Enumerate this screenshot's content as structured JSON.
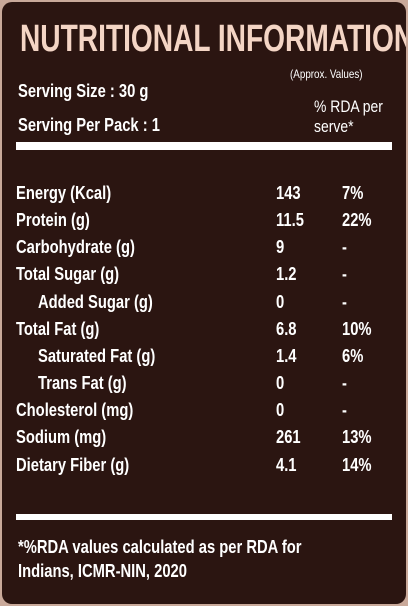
{
  "header": {
    "title": "NUTRITIONAL INFORMATION",
    "note": "(Approx. Values)",
    "serving_size": "Serving Size : 30 g",
    "serving_per_pack": "Serving Per Pack : 1",
    "rda_header": [
      "% RDA per",
      "serve*"
    ]
  },
  "table": {
    "rows": [
      [
        "Energy (Kcal)",
        "143",
        "7%"
      ],
      [
        "Protein (g)",
        "11.5",
        "22%"
      ],
      [
        "Carbohydrate (g)",
        "9",
        "-"
      ],
      [
        "Total Sugar (g)",
        "1.2",
        "-"
      ],
      [
        "Added Sugar (g)",
        "0",
        "-"
      ],
      [
        "Total Fat (g)",
        "6.8",
        "10%"
      ],
      [
        "Saturated Fat (g)",
        "1.4",
        "6%"
      ],
      [
        "Trans Fat (g)",
        "0",
        "-"
      ],
      [
        "Cholesterol (mg)",
        "0",
        "-"
      ],
      [
        "Sodium (mg)",
        "261",
        "13%"
      ],
      [
        "Dietary Fiber (g)",
        "4.1",
        "14%"
      ]
    ],
    "indented": [
      false,
      false,
      false,
      false,
      true,
      false,
      true,
      true,
      false,
      false,
      false
    ]
  },
  "footer": {
    "lines": [
      "*%RDA values calculated as per RDA for",
      "Indians, ICMR-NIN, 2020"
    ]
  }
}
